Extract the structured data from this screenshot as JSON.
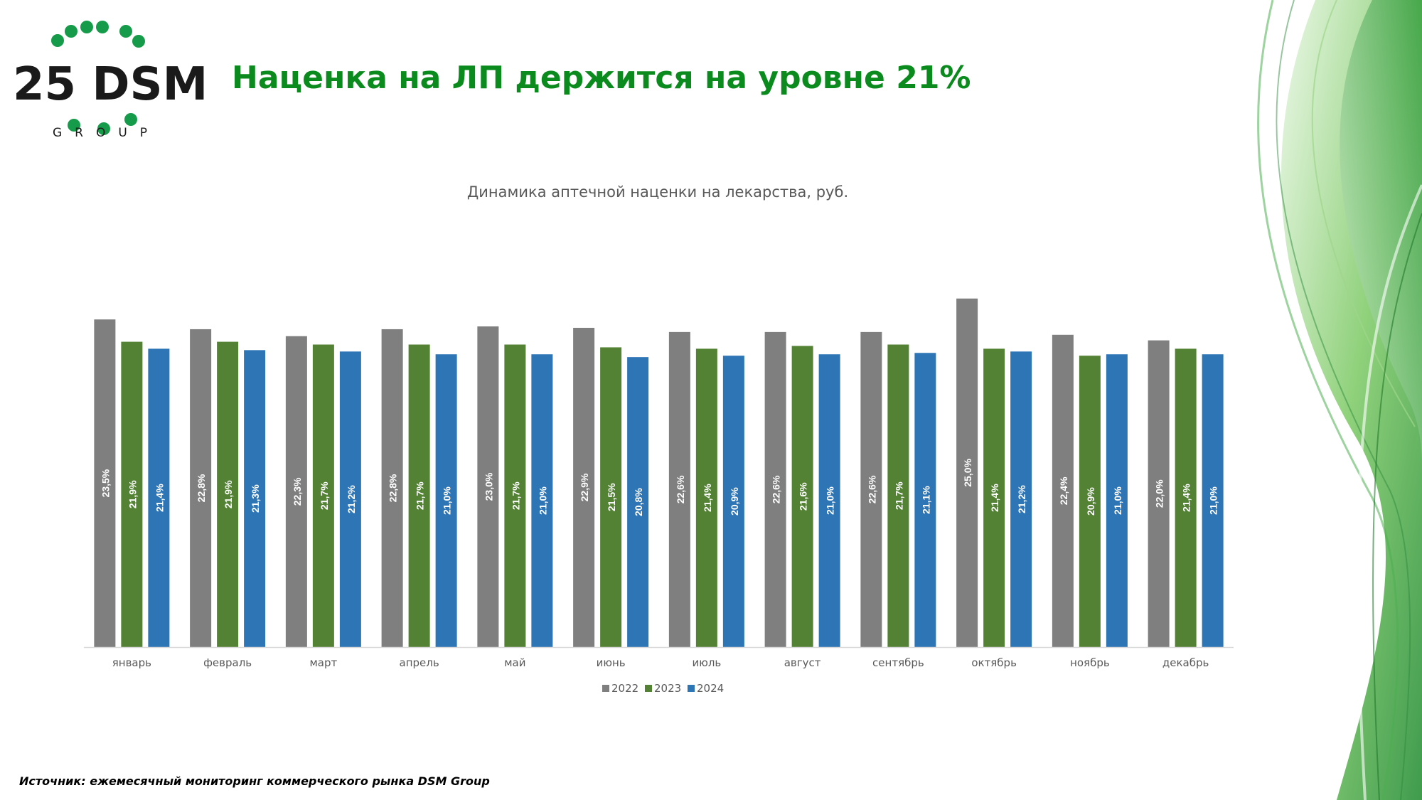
{
  "header": {
    "title": "Наценка на ЛП держится на уровне 21%",
    "logo_text": "25 DSM",
    "logo_subtext": "GROUP"
  },
  "colors": {
    "title": "#0b8a1e",
    "series_2022": "#7f7f7f",
    "series_2023": "#548235",
    "series_2024": "#2e75b6",
    "logo_dots": "#169b4a"
  },
  "chart_data": {
    "type": "bar",
    "title": "Динамика аптечной наценки на лекарства, руб.",
    "categories": [
      "январь",
      "февраль",
      "март",
      "апрель",
      "май",
      "июнь",
      "июль",
      "август",
      "сентябрь",
      "октябрь",
      "ноябрь",
      "декабрь"
    ],
    "series": [
      {
        "name": "2022",
        "values": [
          23.5,
          22.8,
          22.3,
          22.8,
          23.0,
          22.9,
          22.6,
          22.6,
          22.6,
          25.0,
          22.4,
          22.0
        ]
      },
      {
        "name": "2023",
        "values": [
          21.9,
          21.9,
          21.7,
          21.7,
          21.7,
          21.5,
          21.4,
          21.6,
          21.7,
          21.4,
          20.9,
          21.4
        ]
      },
      {
        "name": "2024",
        "values": [
          21.4,
          21.3,
          21.2,
          21.0,
          21.0,
          20.8,
          20.9,
          21.0,
          21.1,
          21.2,
          21.0,
          21.0
        ]
      }
    ],
    "ylim": [
      0,
      25.5
    ],
    "data_label_format": "percent-comma-1",
    "legend": "bottom-center",
    "grid": false
  },
  "footer": {
    "source": "Источник: ежемесячный мониторинг коммерческого рынка DSM Group"
  }
}
